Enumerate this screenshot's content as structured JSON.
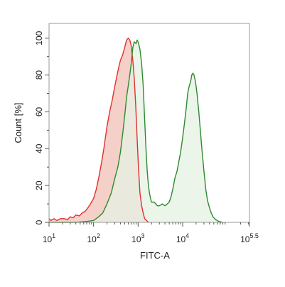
{
  "chart_data": {
    "type": "area",
    "title": "",
    "xlabel": "FITC-A",
    "ylabel": "Count [%]",
    "x_scale": "log",
    "xlim": [
      10,
      316228
    ],
    "ylim": [
      0,
      108
    ],
    "x_ticks": [
      {
        "value": 10,
        "base": "10",
        "exp": "1"
      },
      {
        "value": 100,
        "base": "10",
        "exp": "2"
      },
      {
        "value": 1000,
        "base": "10",
        "exp": "3"
      },
      {
        "value": 10000,
        "base": "10",
        "exp": "4"
      },
      {
        "value": 316228,
        "base": "10",
        "exp": "5.5"
      }
    ],
    "y_ticks": [
      "0",
      "20",
      "40",
      "60",
      "80",
      "100"
    ],
    "grid": false,
    "legend": "none",
    "series": [
      {
        "color": "#e03030",
        "fill": "#f2c8c0",
        "points": [
          [
            10,
            2
          ],
          [
            11,
            1
          ],
          [
            13,
            2
          ],
          [
            15,
            1
          ],
          [
            18,
            2
          ],
          [
            22,
            2
          ],
          [
            26,
            1.5
          ],
          [
            30,
            3
          ],
          [
            35,
            2.5
          ],
          [
            40,
            4
          ],
          [
            48,
            3.5
          ],
          [
            55,
            5
          ],
          [
            65,
            6
          ],
          [
            75,
            8
          ],
          [
            85,
            10
          ],
          [
            100,
            13
          ],
          [
            115,
            18
          ],
          [
            130,
            24
          ],
          [
            150,
            32
          ],
          [
            170,
            40
          ],
          [
            200,
            52
          ],
          [
            230,
            60
          ],
          [
            260,
            66
          ],
          [
            300,
            74
          ],
          [
            350,
            82
          ],
          [
            400,
            88
          ],
          [
            450,
            91
          ],
          [
            500,
            95
          ],
          [
            550,
            99
          ],
          [
            600,
            100
          ],
          [
            650,
            99
          ],
          [
            700,
            96
          ],
          [
            760,
            88
          ],
          [
            820,
            78
          ],
          [
            880,
            64
          ],
          [
            950,
            46
          ],
          [
            1000,
            34
          ],
          [
            1050,
            24
          ],
          [
            1100,
            16
          ],
          [
            1200,
            9
          ],
          [
            1300,
            5
          ],
          [
            1400,
            2
          ],
          [
            1550,
            1
          ],
          [
            1700,
            0
          ]
        ]
      },
      {
        "color": "#2e8b2e",
        "fill": "#e6f2e3",
        "points": [
          [
            10,
            0
          ],
          [
            40,
            0
          ],
          [
            70,
            0.5
          ],
          [
            100,
            1
          ],
          [
            130,
            3
          ],
          [
            160,
            5
          ],
          [
            200,
            10
          ],
          [
            250,
            16
          ],
          [
            300,
            24
          ],
          [
            350,
            30
          ],
          [
            400,
            38
          ],
          [
            450,
            48
          ],
          [
            500,
            58
          ],
          [
            550,
            68
          ],
          [
            600,
            74
          ],
          [
            650,
            80
          ],
          [
            700,
            86
          ],
          [
            760,
            95
          ],
          [
            820,
            98
          ],
          [
            900,
            97
          ],
          [
            950,
            99
          ],
          [
            1000,
            98
          ],
          [
            1050,
            96
          ],
          [
            1100,
            94
          ],
          [
            1200,
            86
          ],
          [
            1300,
            74
          ],
          [
            1400,
            56
          ],
          [
            1500,
            40
          ],
          [
            1600,
            28
          ],
          [
            1700,
            20
          ],
          [
            1800,
            16
          ],
          [
            1900,
            13
          ],
          [
            2000,
            11
          ],
          [
            2300,
            11
          ],
          [
            2700,
            9
          ],
          [
            3000,
            9
          ],
          [
            3500,
            10
          ],
          [
            4000,
            9
          ],
          [
            4500,
            10
          ],
          [
            5000,
            11
          ],
          [
            5500,
            14
          ],
          [
            6000,
            18
          ],
          [
            6700,
            24
          ],
          [
            7500,
            28
          ],
          [
            8200,
            33
          ],
          [
            9000,
            38
          ],
          [
            10000,
            46
          ],
          [
            11000,
            54
          ],
          [
            12000,
            62
          ],
          [
            13000,
            70
          ],
          [
            14000,
            74
          ],
          [
            15000,
            76
          ],
          [
            16000,
            80
          ],
          [
            17000,
            81
          ],
          [
            18000,
            80
          ],
          [
            19500,
            76
          ],
          [
            21000,
            70
          ],
          [
            23000,
            60
          ],
          [
            25000,
            50
          ],
          [
            27000,
            40
          ],
          [
            30000,
            28
          ],
          [
            33000,
            18
          ],
          [
            36000,
            12
          ],
          [
            40000,
            8
          ],
          [
            44000,
            5
          ],
          [
            48000,
            3
          ],
          [
            55000,
            1.5
          ],
          [
            65000,
            0.5
          ],
          [
            80000,
            0
          ]
        ]
      }
    ]
  }
}
